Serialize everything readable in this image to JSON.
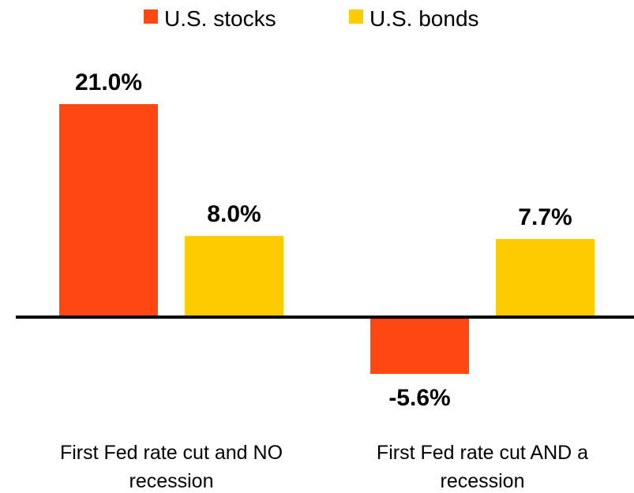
{
  "chart_data": {
    "type": "bar",
    "categories": [
      "First Fed rate cut and NO recession",
      "First Fed rate cut AND a recession"
    ],
    "series": [
      {
        "name": "U.S. stocks",
        "color": "#ff4713",
        "values": [
          21.0,
          -5.6
        ],
        "value_labels": [
          "21.0%",
          "-5.6%"
        ]
      },
      {
        "name": "U.S. bonds",
        "color": "#ffcc00",
        "values": [
          8.0,
          7.7
        ],
        "value_labels": [
          "8.0%",
          "7.7%"
        ]
      }
    ],
    "legend": "top"
  }
}
